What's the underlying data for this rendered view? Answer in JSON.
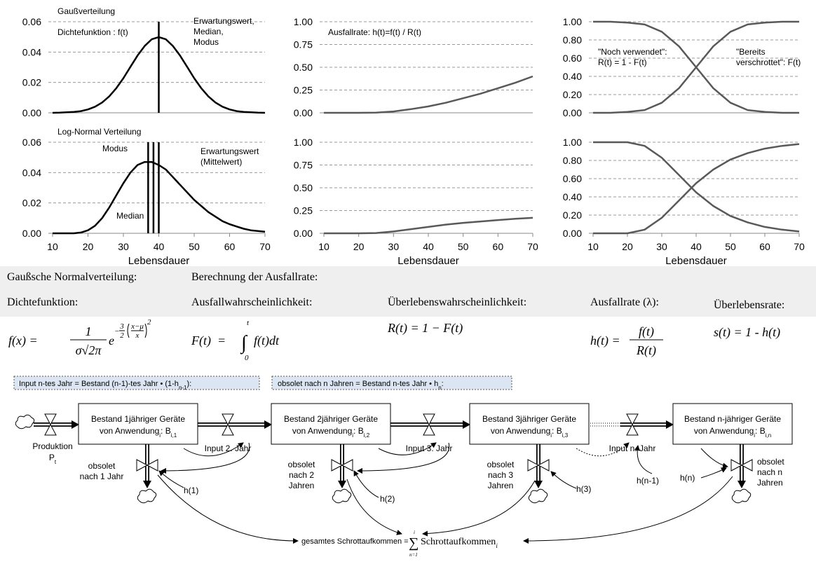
{
  "chart_data": [
    {
      "type": "line",
      "title": "Gaußverteilung",
      "xlim": [
        10,
        70
      ],
      "ylim": [
        0,
        0.06
      ],
      "yticks": [
        {
          "value": 0,
          "label": "0.00"
        },
        0.02,
        0.04,
        0.06
      ],
      "grid": true,
      "x": [
        10,
        12,
        14,
        16,
        18,
        20,
        22,
        24,
        26,
        28,
        30,
        32,
        34,
        36,
        38,
        40,
        42,
        44,
        46,
        48,
        50,
        52,
        54,
        56,
        58,
        60,
        62,
        64,
        66,
        68,
        70
      ],
      "series": [
        {
          "color": "#000000",
          "values": [
            0,
            0.0001,
            0.0003,
            0.0006,
            0.0011,
            0.0022,
            0.004,
            0.0068,
            0.0108,
            0.0162,
            0.0228,
            0.0303,
            0.0377,
            0.044,
            0.0484,
            0.0499,
            0.0484,
            0.044,
            0.0377,
            0.0303,
            0.0228,
            0.0162,
            0.0108,
            0.0068,
            0.004,
            0.0022,
            0.0011,
            0.0006,
            0.0003,
            0.0001,
            0
          ]
        }
      ],
      "annotations": [
        [
          "Dichtefunktion : f(t)"
        ]
      ],
      "markers": [
        {
          "x": 40,
          "label": [
            "Erwartungswert,",
            "Median,",
            "Modus"
          ]
        }
      ]
    },
    {
      "type": "line",
      "xlim": [
        10,
        70
      ],
      "ylim": [
        0,
        1
      ],
      "yticks": [
        {
          "value": 0,
          "label": "0.00"
        },
        0.25,
        {
          "value": 0.5,
          "label": "0.50"
        },
        0.75,
        {
          "value": 1,
          "label": "1.00"
        }
      ],
      "grid": true,
      "x": [
        10,
        15,
        20,
        25,
        30,
        35,
        40,
        45,
        50,
        55,
        60,
        65,
        70
      ],
      "series": [
        {
          "color": "#595959",
          "values": [
            0,
            0,
            0,
            0.002,
            0.015,
            0.04,
            0.07,
            0.11,
            0.16,
            0.21,
            0.27,
            0.33,
            0.4
          ]
        }
      ],
      "annotations": [
        [
          "Ausfallrate: h(t)=f(t) / R(t)"
        ]
      ]
    },
    {
      "type": "line",
      "xlim": [
        10,
        70
      ],
      "ylim": [
        0,
        1
      ],
      "yticks": [
        {
          "value": 0,
          "label": "0.00"
        },
        {
          "value": 0.2,
          "label": "0.20"
        },
        {
          "value": 0.4,
          "label": "0.40"
        },
        {
          "value": 0.6,
          "label": "0.60"
        },
        {
          "value": 0.8,
          "label": "0.80"
        },
        {
          "value": 1,
          "label": "1.00"
        }
      ],
      "grid": true,
      "x": [
        10,
        15,
        20,
        25,
        30,
        35,
        40,
        45,
        50,
        55,
        60,
        65,
        70
      ],
      "series": [
        {
          "color": "#595959",
          "values": [
            1,
            1,
            0.99,
            0.97,
            0.89,
            0.73,
            0.5,
            0.27,
            0.11,
            0.03,
            0.01,
            0,
            0
          ]
        },
        {
          "color": "#595959",
          "values": [
            0,
            0,
            0.01,
            0.03,
            0.11,
            0.27,
            0.5,
            0.73,
            0.89,
            0.97,
            0.99,
            1,
            1
          ]
        }
      ],
      "annotations": [
        [
          "\"Noch verwendet\":",
          "R(t) = 1 - F(t)"
        ],
        [
          "\"Bereits",
          "verschrottet\": F(t)"
        ]
      ]
    },
    {
      "type": "line",
      "title": "Log-Normal Verteilung",
      "xlim": [
        10,
        70
      ],
      "ylim": [
        0,
        0.06
      ],
      "yticks": [
        {
          "value": 0,
          "label": "0.00"
        },
        0.02,
        0.04,
        0.06
      ],
      "xticks": [
        10,
        20,
        30,
        40,
        50,
        60,
        70
      ],
      "xlabel": "Lebensdauer",
      "grid": true,
      "x": [
        10,
        12,
        14,
        16,
        18,
        20,
        22,
        24,
        26,
        28,
        30,
        32,
        34,
        36,
        38,
        40,
        42,
        44,
        46,
        48,
        50,
        52,
        54,
        56,
        58,
        60,
        62,
        64,
        66,
        68,
        70
      ],
      "series": [
        {
          "color": "#000000",
          "values": [
            0,
            0,
            0,
            0,
            0.0005,
            0.002,
            0.005,
            0.01,
            0.017,
            0.025,
            0.033,
            0.04,
            0.045,
            0.047,
            0.047,
            0.045,
            0.042,
            0.037,
            0.032,
            0.027,
            0.022,
            0.018,
            0.014,
            0.011,
            0.008,
            0.006,
            0.0045,
            0.003,
            0.002,
            0.0015,
            0.001
          ]
        }
      ],
      "markers": [
        {
          "x": 37,
          "label": [
            "Modus"
          ]
        },
        {
          "x": 38.5,
          "label": [
            "Median"
          ]
        },
        {
          "x": 40,
          "label": [
            "Erwartungswert",
            "(Mittelwert)"
          ]
        }
      ]
    },
    {
      "type": "line",
      "xlim": [
        10,
        70
      ],
      "ylim": [
        0,
        1
      ],
      "yticks": [
        {
          "value": 0,
          "label": "0.00"
        },
        0.25,
        {
          "value": 0.5,
          "label": "0.50"
        },
        0.75,
        {
          "value": 1,
          "label": "1.00"
        }
      ],
      "xticks": [
        10,
        20,
        30,
        40,
        50,
        60,
        70
      ],
      "xlabel": "Lebensdauer",
      "grid": true,
      "x": [
        10,
        15,
        20,
        25,
        30,
        35,
        40,
        45,
        50,
        55,
        60,
        65,
        70
      ],
      "series": [
        {
          "color": "#595959",
          "values": [
            0,
            0,
            0,
            0.003,
            0.02,
            0.045,
            0.07,
            0.095,
            0.115,
            0.13,
            0.145,
            0.16,
            0.17
          ]
        }
      ]
    },
    {
      "type": "line",
      "xlim": [
        10,
        70
      ],
      "ylim": [
        0,
        1
      ],
      "yticks": [
        {
          "value": 0,
          "label": "0.00"
        },
        {
          "value": 0.2,
          "label": "0.20"
        },
        {
          "value": 0.4,
          "label": "0.40"
        },
        {
          "value": 0.6,
          "label": "0.60"
        },
        {
          "value": 0.8,
          "label": "0.80"
        },
        {
          "value": 1,
          "label": "1.00"
        }
      ],
      "xticks": [
        10,
        20,
        30,
        40,
        50,
        60,
        70
      ],
      "xlabel": "Lebensdauer",
      "grid": true,
      "x": [
        10,
        15,
        20,
        25,
        30,
        35,
        40,
        45,
        50,
        55,
        60,
        65,
        70
      ],
      "series": [
        {
          "color": "#595959",
          "values": [
            1,
            1,
            1,
            0.96,
            0.83,
            0.64,
            0.45,
            0.3,
            0.19,
            0.12,
            0.07,
            0.04,
            0.02
          ]
        },
        {
          "color": "#595959",
          "values": [
            0,
            0,
            0,
            0.04,
            0.17,
            0.36,
            0.55,
            0.7,
            0.81,
            0.88,
            0.93,
            0.96,
            0.98
          ]
        }
      ]
    }
  ],
  "formulas": {
    "heading_left": "Gaußsche Normalverteilung:",
    "heading_right": "Berechnung der Ausfallrate:",
    "density": {
      "label": "Dichtefunktion:",
      "lhs": "f(x) =",
      "num": "1",
      "den": "σ√2π",
      "base": "e",
      "exp_sign": "−",
      "exp_num": "3",
      "exp_den": "2",
      "exp_inner_num": "x−μ",
      "exp_inner_den": "x",
      "exp_power": "2"
    },
    "failure_probability": {
      "label": "Ausfallwahrscheinlichkeit:",
      "lhs": "F(t)  =",
      "symbol": "∫",
      "upper": "t",
      "lower": "0",
      "integrand": "f(t)dt"
    },
    "survival_probability": {
      "label": "Überlebenswahrscheinlichkeit:",
      "formula": "R(t) = 1 − F(t)"
    },
    "failure_rate": {
      "label": "Ausfallrate (λ):",
      "lhs": "h(t) =",
      "num": "f(t)",
      "den": "R(t)"
    },
    "survival_rate": {
      "label": "Überlebensrate:",
      "formula": "s(t) = 1 - h(t)"
    }
  },
  "diagram": {
    "banners": [
      {
        "text": "Input n-tes Jahr = Bestand (n-1)-tes Jahr • (1-h",
        "sub": "n-1",
        "tail": "):"
      },
      {
        "text": "obsolet nach n Jahren = Bestand n-tes Jahr • h",
        "sub": "n",
        "tail": ":"
      }
    ],
    "boxes": [
      {
        "line1": "Bestand 1jähriger Geräte",
        "line2": "von Anwendung",
        "sub1": "i",
        "mid": ": B",
        "sub2": "i,1"
      },
      {
        "line1": "Bestand 2jähriger Geräte",
        "line2": "von Anwendung",
        "sub1": "i",
        "mid": ": B",
        "sub2": "i,2"
      },
      {
        "line1": "Bestand 3jähriger Geräte",
        "line2": "von Anwendung",
        "sub1": "i",
        "mid": ": B",
        "sub2": "i,3"
      },
      {
        "line1": "Bestand n-jähriger Geräte",
        "line2": "von Anwendung",
        "sub1": "i",
        "mid": ": B",
        "sub2": "i,n"
      }
    ],
    "production": {
      "label": "Produktion",
      "symbol": "P",
      "sub": "t"
    },
    "inputs": [
      "Input 2. Jahr",
      "Input 3. Jahr",
      "Input n. Jahr"
    ],
    "outflows": [
      [
        "obsolet",
        "nach 1 Jahr"
      ],
      [
        "obsolet",
        "nach 2",
        "Jahren"
      ],
      [
        "obsolet",
        "nach 3",
        "Jahren"
      ],
      [
        "obsolet",
        "nach n",
        "Jahren"
      ]
    ],
    "rates": [
      "h(1)",
      "h(2)",
      "h(3)",
      "h(n-1)",
      "h(n)"
    ],
    "total": {
      "text": "gesamtes Schrottaufkommen = ",
      "symbol": "∑",
      "upper": "i",
      "lower": "n=1",
      "term": "Schrottaufkommen",
      "sub": "i"
    }
  }
}
